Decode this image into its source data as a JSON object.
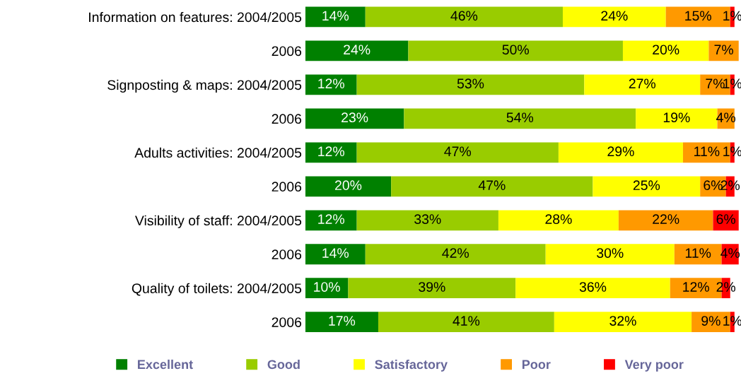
{
  "chart_data": {
    "type": "bar",
    "orientation": "horizontal",
    "stacked": true,
    "legend": "bottom",
    "grid": false,
    "tick_labels": "y",
    "categories": [
      "Information on features: 2004/2005",
      "2006",
      "Signposting & maps: 2004/2005",
      "2006",
      "Adults activities: 2004/2005",
      "2006",
      "Visibility of staff: 2004/2005",
      "2006",
      "Quality of toilets: 2004/2005",
      "2006"
    ],
    "series": [
      {
        "name": "Excellent",
        "color": "#008000",
        "values": [
          14,
          24,
          12,
          23,
          12,
          20,
          12,
          14,
          10,
          17
        ],
        "value_labels": [
          "14%",
          "24%",
          "12%",
          "23%",
          "12%",
          "20%",
          "12%",
          "14%",
          "10%",
          "17%"
        ]
      },
      {
        "name": "Good",
        "color": "#99cc00",
        "values": [
          46,
          50,
          53,
          54,
          47,
          47,
          33,
          42,
          39,
          41
        ],
        "value_labels": [
          "46%",
          "50%",
          "53%",
          "54%",
          "47%",
          "47%",
          "33%",
          "42%",
          "39%",
          "41%"
        ]
      },
      {
        "name": "Satisfactory",
        "color": "#ffff00",
        "values": [
          24,
          20,
          27,
          19,
          29,
          25,
          28,
          30,
          36,
          32
        ],
        "value_labels": [
          "24%",
          "20%",
          "27%",
          "19%",
          "29%",
          "25%",
          "28%",
          "30%",
          "36%",
          "32%"
        ]
      },
      {
        "name": "Poor",
        "color": "#ff9900",
        "values": [
          15,
          7,
          7,
          4,
          11,
          6,
          22,
          11,
          12,
          9
        ],
        "value_labels": [
          "15%",
          "7%",
          "7%",
          "4%",
          "11%",
          "6%",
          "22%",
          "11%",
          "12%",
          "9%"
        ]
      },
      {
        "name": "Very poor",
        "color": "#ff0000",
        "values": [
          1,
          null,
          1,
          null,
          1,
          2,
          6,
          4,
          2,
          1
        ],
        "value_labels": [
          "1%",
          null,
          "1%",
          null,
          "1%",
          "2%",
          "6%",
          "4%",
          "2%",
          "1%"
        ]
      }
    ]
  }
}
